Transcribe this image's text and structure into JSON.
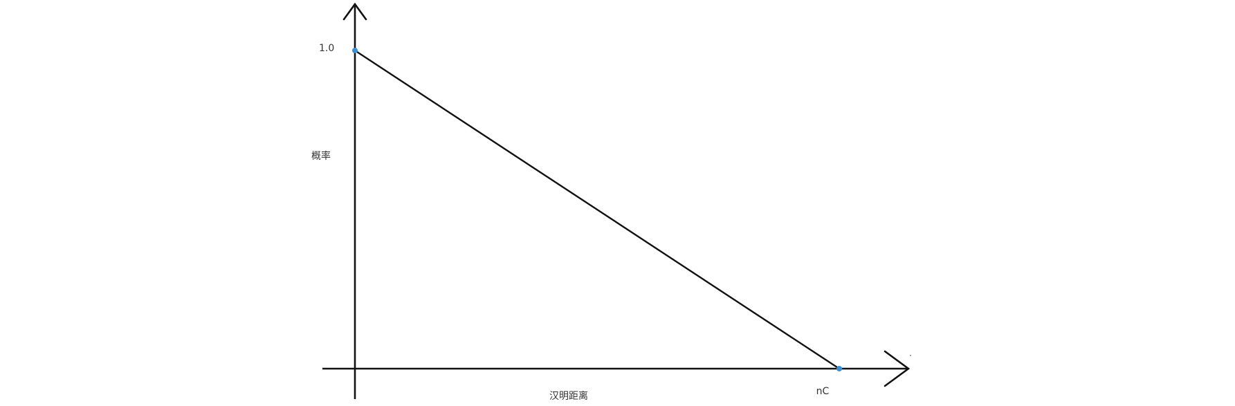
{
  "chart_data": {
    "type": "line",
    "xlabel": "汉明距离",
    "ylabel": "概率",
    "x_tick_labels": [
      "nC"
    ],
    "y_tick_labels": [
      "1.0"
    ],
    "series": [
      {
        "x": [
          0,
          1
        ],
        "y": [
          1.0,
          0
        ],
        "point_labels": [
          "1.0",
          "nC"
        ]
      }
    ],
    "marker_color": "#3a8fd9",
    "line_color": "#111111",
    "grid": false
  }
}
